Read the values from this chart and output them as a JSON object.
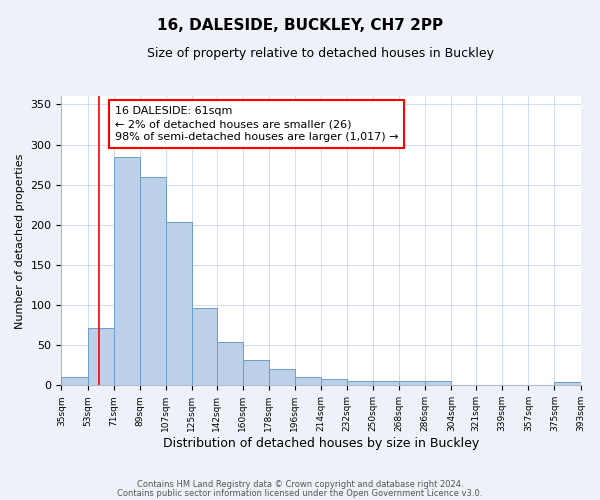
{
  "title": "16, DALESIDE, BUCKLEY, CH7 2PP",
  "subtitle": "Size of property relative to detached houses in Buckley",
  "xlabel": "Distribution of detached houses by size in Buckley",
  "ylabel": "Number of detached properties",
  "bar_left_edges": [
    35,
    53,
    71,
    89,
    107,
    125,
    142,
    160,
    178,
    196,
    214,
    232,
    250,
    268,
    286,
    304,
    321,
    339,
    357,
    375
  ],
  "bar_widths": [
    18,
    18,
    18,
    18,
    18,
    17,
    18,
    18,
    18,
    18,
    18,
    18,
    18,
    18,
    18,
    17,
    18,
    18,
    18,
    18
  ],
  "bar_heights": [
    10,
    72,
    285,
    260,
    204,
    96,
    54,
    31,
    20,
    10,
    8,
    5,
    5,
    5,
    5,
    0,
    0,
    0,
    0,
    4
  ],
  "bar_color": "#bdd0e9",
  "bar_edge_color": "#6a9fc8",
  "tick_labels": [
    "35sqm",
    "53sqm",
    "71sqm",
    "89sqm",
    "107sqm",
    "125sqm",
    "142sqm",
    "160sqm",
    "178sqm",
    "196sqm",
    "214sqm",
    "232sqm",
    "250sqm",
    "268sqm",
    "286sqm",
    "304sqm",
    "321sqm",
    "339sqm",
    "357sqm",
    "375sqm",
    "393sqm"
  ],
  "red_line_x": 61,
  "ylim": [
    0,
    360
  ],
  "yticks": [
    0,
    50,
    100,
    150,
    200,
    250,
    300,
    350
  ],
  "annotation_text": "16 DALESIDE: 61sqm\n← 2% of detached houses are smaller (26)\n98% of semi-detached houses are larger (1,017) →",
  "footer_line1": "Contains HM Land Registry data © Crown copyright and database right 2024.",
  "footer_line2": "Contains public sector information licensed under the Open Government Licence v3.0.",
  "bg_color": "#eef2f8",
  "plot_bg_color": "#ffffff",
  "grid_color": "#c8d8ea"
}
